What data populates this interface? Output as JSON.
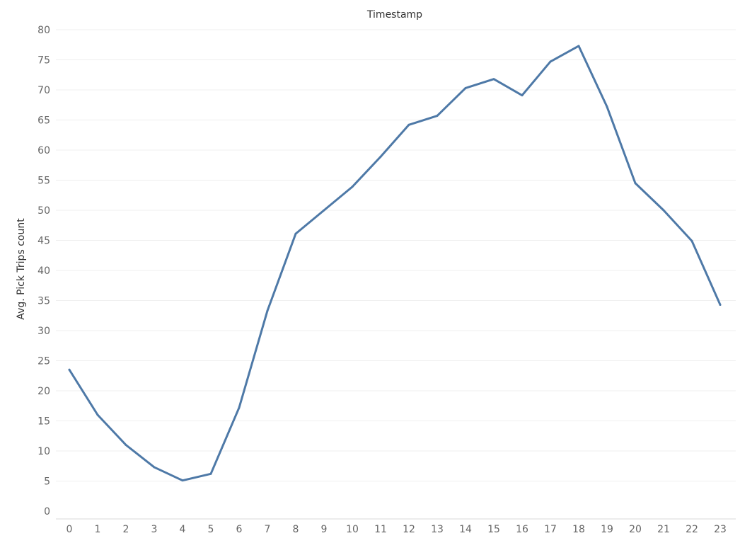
{
  "chart_data": {
    "type": "line",
    "title": "Timestamp",
    "xlabel": "",
    "ylabel": "Avg. Pick Trips count",
    "x": [
      0,
      1,
      2,
      3,
      4,
      5,
      6,
      7,
      8,
      9,
      10,
      11,
      12,
      13,
      14,
      15,
      16,
      17,
      18,
      19,
      20,
      21,
      22,
      23
    ],
    "series": [
      {
        "values": [
          23.5,
          16.0,
          11.0,
          7.3,
          5.1,
          6.2,
          17.2,
          33.3,
          46.1,
          50.0,
          53.9,
          58.9,
          64.2,
          65.7,
          70.3,
          71.8,
          69.1,
          74.7,
          77.3,
          67.2,
          54.5,
          50.0,
          44.9,
          34.3
        ],
        "color": "#4e79a7"
      }
    ],
    "yticks": [
      0,
      5,
      10,
      15,
      20,
      25,
      30,
      35,
      40,
      45,
      50,
      55,
      60,
      65,
      70,
      75,
      80
    ],
    "ylim": [
      0,
      80
    ],
    "grid": true,
    "legend": "none"
  }
}
